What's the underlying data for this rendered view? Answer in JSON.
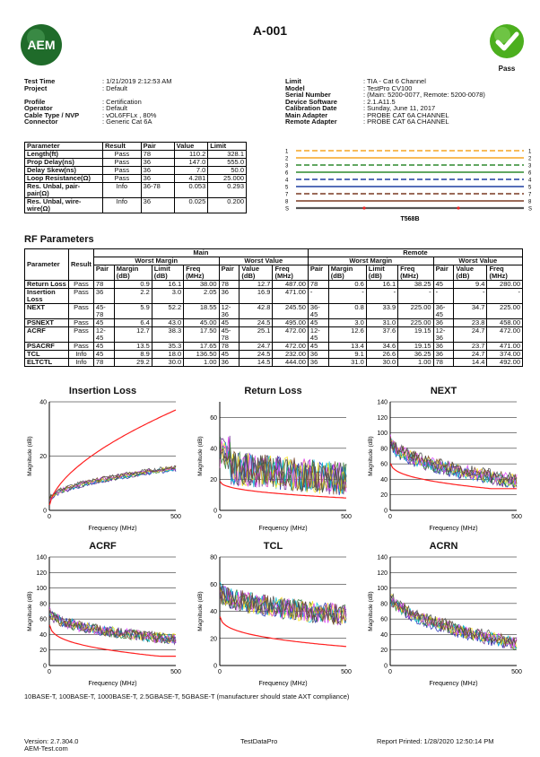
{
  "title": "A-001",
  "logo_text": "AEM",
  "status": "Pass",
  "colors": {
    "pass_green": "#4caf1e",
    "logo_green": "#1f6b2a",
    "limit_red": "#ff2020"
  },
  "left_info": [
    {
      "label": "Test Time",
      "value": ": 1/21/2019 2:12:53 AM"
    },
    {
      "label": "Project",
      "value": ": Default"
    },
    {
      "label": "",
      "value": ""
    },
    {
      "label": "Profile",
      "value": ": Certification"
    },
    {
      "label": "Operator",
      "value": ": Default"
    },
    {
      "label": "Cable Type / NVP",
      "value": ": vOL6FFLx , 80%"
    },
    {
      "label": "Connector",
      "value": ": Generic Cat 6A"
    }
  ],
  "right_info": [
    {
      "label": "Limit",
      "value": ": TIA - Cat 6 Channel"
    },
    {
      "label": "Model",
      "value": ": TestPro CV100"
    },
    {
      "label": "Serial Number",
      "value": ": (Main: 5200-0077, Remote: 5200-0078)"
    },
    {
      "label": "Device Software",
      "value": ": 2.1.A11.5"
    },
    {
      "label": "Calibration Date",
      "value": ": Sunday, June 11, 2017"
    },
    {
      "label": "Main Adapter",
      "value": ": PROBE CAT 6A CHANNEL"
    },
    {
      "label": "Remote Adapter",
      "value": ": PROBE CAT 6A CHANNEL"
    }
  ],
  "summary": {
    "headers": [
      "Parameter",
      "Result",
      "Pair",
      "Value",
      "Limit"
    ],
    "rows": [
      [
        "Length(ft)",
        "Pass",
        "78",
        "110.2",
        "328.1"
      ],
      [
        "Prop Delay(ns)",
        "Pass",
        "36",
        "147.0",
        "555.0"
      ],
      [
        "Delay Skew(ns)",
        "Pass",
        "36",
        "7.0",
        "50.0"
      ],
      [
        "Loop Resistance(Ω)",
        "Pass",
        "36",
        "4.281",
        "25.000"
      ],
      [
        "Res. Unbal, pair-pair(Ω)",
        "Info",
        "36-78",
        "0.053",
        "0.293"
      ],
      [
        "Res. Unbal, wire-wire(Ω)",
        "Info",
        "36",
        "0.025",
        "0.200"
      ]
    ]
  },
  "wiremap": {
    "pins": [
      "1",
      "2",
      "3",
      "6",
      "4",
      "5",
      "7",
      "8"
    ],
    "colors": [
      "#f5a623",
      "#f5a623",
      "#2d8a2d",
      "#2d8a2d",
      "#1e3fa0",
      "#1e3fa0",
      "#7a3a22",
      "#7a3a22"
    ],
    "shield": "S",
    "standard": "T568B"
  },
  "rf": {
    "heading": "RF Parameters",
    "main_label": "Main",
    "remote_label": "Remote",
    "group_labels": [
      "Worst Margin",
      "Worst Value"
    ],
    "param_label": "Parameter",
    "result_label": "Result",
    "sub_headers": [
      "Pair",
      "Margin (dB)",
      "Limit (dB)",
      "Freq (MHz)",
      "Pair",
      "Value (dB)",
      "Freq (MHz)"
    ],
    "rows": [
      {
        "name": "Return Loss",
        "result": "Pass",
        "main": [
          "78",
          "0.9",
          "16.1",
          "38.00",
          "78",
          "12.7",
          "487.00"
        ],
        "remote": [
          "78",
          "0.6",
          "16.1",
          "38.25",
          "45",
          "9.4",
          "280.00"
        ]
      },
      {
        "name": "Insertion Loss",
        "result": "Pass",
        "main": [
          "36",
          "2.2",
          "3.0",
          "2.05",
          "36",
          "16.9",
          "471.00"
        ],
        "remote": [
          "-",
          "-",
          "-",
          "-",
          "-",
          "-",
          "-"
        ]
      },
      {
        "name": "NEXT",
        "result": "Pass",
        "main": [
          "45-78",
          "5.9",
          "52.2",
          "18.55",
          "12-36",
          "42.8",
          "245.50"
        ],
        "remote": [
          "36-45",
          "0.8",
          "33.9",
          "225.00",
          "36-45",
          "34.7",
          "225.00"
        ]
      },
      {
        "name": "PSNEXT",
        "result": "Pass",
        "main": [
          "45",
          "6.4",
          "43.0",
          "45.00",
          "45",
          "24.5",
          "495.00"
        ],
        "remote": [
          "45",
          "3.0",
          "31.0",
          "225.00",
          "36",
          "23.8",
          "458.00"
        ]
      },
      {
        "name": "ACRF",
        "result": "Pass",
        "main": [
          "12-45",
          "12.7",
          "38.3",
          "17.50",
          "45-78",
          "25.1",
          "472.00"
        ],
        "remote": [
          "12-45",
          "12.6",
          "37.6",
          "19.15",
          "12-36",
          "24.7",
          "472.00"
        ]
      },
      {
        "name": "PSACRF",
        "result": "Pass",
        "main": [
          "45",
          "13.5",
          "35.3",
          "17.65",
          "78",
          "24.7",
          "472.00"
        ],
        "remote": [
          "45",
          "13.4",
          "34.6",
          "19.15",
          "36",
          "23.7",
          "471.00"
        ]
      },
      {
        "name": "TCL",
        "result": "Info",
        "main": [
          "45",
          "8.9",
          "18.0",
          "136.50",
          "45",
          "24.5",
          "232.00"
        ],
        "remote": [
          "36",
          "9.1",
          "26.6",
          "36.25",
          "36",
          "24.7",
          "374.00"
        ]
      },
      {
        "name": "ELTCTL",
        "result": "Info",
        "main": [
          "78",
          "29.2",
          "30.0",
          "1.00",
          "36",
          "14.5",
          "444.00"
        ],
        "remote": [
          "36",
          "31.0",
          "30.0",
          "1.00",
          "78",
          "14.4",
          "492.00"
        ]
      }
    ]
  },
  "chart_data": [
    {
      "type": "line",
      "title": "Insertion Loss",
      "xlabel": "Frequency (MHz)",
      "ylabel": "Magnitude (dB)",
      "xlim": [
        0,
        500
      ],
      "ylim": [
        0,
        40
      ],
      "yticks": [
        0,
        20,
        40
      ],
      "xticks": [
        0,
        500
      ],
      "shape": "il"
    },
    {
      "type": "line",
      "title": "Return Loss",
      "xlabel": "Frequency (MHz)",
      "ylabel": "Magnitude (dB)",
      "xlim": [
        0,
        500
      ],
      "ylim": [
        0,
        70
      ],
      "yticks": [
        0,
        20,
        40,
        60
      ],
      "xticks": [
        0,
        500
      ],
      "shape": "rl"
    },
    {
      "type": "line",
      "title": "NEXT",
      "xlabel": "Frequency (MHz)",
      "ylabel": "Magnitude (dB)",
      "xlim": [
        0,
        500
      ],
      "ylim": [
        0,
        140
      ],
      "yticks": [
        0,
        20,
        40,
        60,
        80,
        100,
        120,
        140
      ],
      "xticks": [
        0,
        500
      ],
      "shape": "next"
    },
    {
      "type": "line",
      "title": "ACRF",
      "xlabel": "Frequency (MHz)",
      "ylabel": "Magnitude (dB)",
      "xlim": [
        0,
        500
      ],
      "ylim": [
        0,
        140
      ],
      "yticks": [
        0,
        20,
        40,
        60,
        80,
        100,
        120,
        140
      ],
      "xticks": [
        0,
        500
      ],
      "shape": "acrf"
    },
    {
      "type": "line",
      "title": "TCL",
      "xlabel": "Frequency (MHz)",
      "ylabel": "Magnitude (dB)",
      "xlim": [
        0,
        500
      ],
      "ylim": [
        0,
        80
      ],
      "yticks": [
        0,
        20,
        40,
        60,
        80
      ],
      "xticks": [
        0,
        500
      ],
      "shape": "tcl"
    },
    {
      "type": "line",
      "title": "ACRN",
      "xlabel": "Frequency (MHz)",
      "ylabel": "Magnitude (dB)",
      "xlim": [
        0,
        500
      ],
      "ylim": [
        0,
        140
      ],
      "yticks": [
        0,
        20,
        40,
        60,
        80,
        100,
        120,
        140
      ],
      "xticks": [
        0,
        500
      ],
      "shape": "acrn"
    }
  ],
  "compliance_note": "10BASE-T, 100BASE-T, 1000BASE-T, 2.5GBASE-T, 5GBASE-T (manufacturer should state AXT compliance)",
  "footer": {
    "version": "Version: 2.7.304.0",
    "site": "AEM-Test.com",
    "center": "TestDataPro",
    "printed": "Report Printed: 1/28/2020 12:50:14 PM"
  }
}
